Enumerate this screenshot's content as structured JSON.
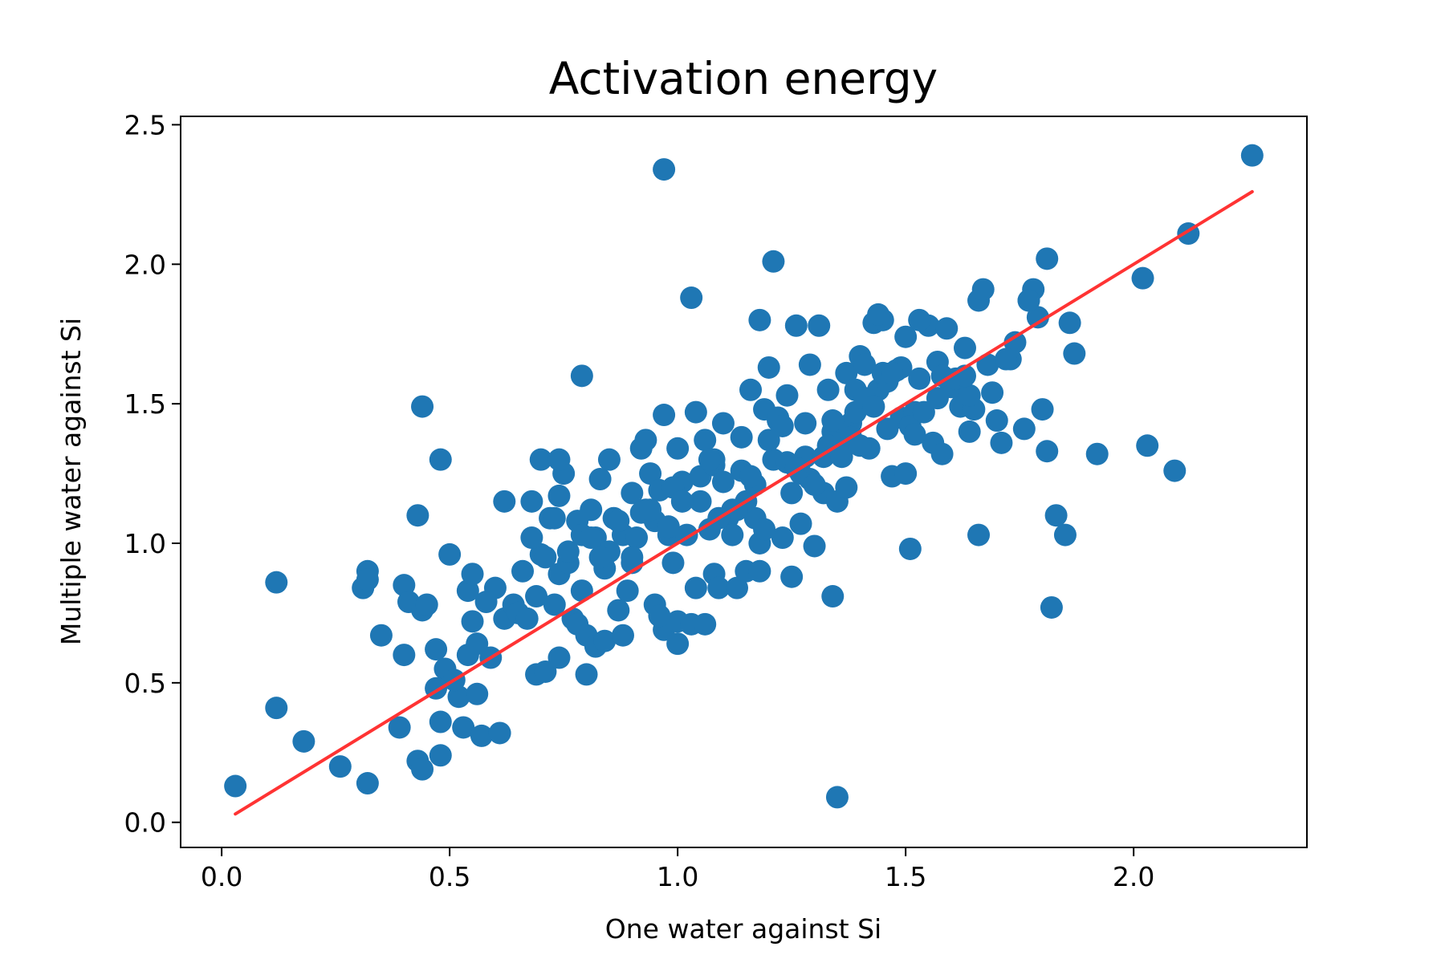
{
  "chart_data": {
    "type": "scatter",
    "title": "Activation energy",
    "xlabel": "One water against Si",
    "ylabel": "Multiple water against Si",
    "xlim": [
      -0.09,
      2.38
    ],
    "ylim": [
      -0.09,
      2.53
    ],
    "x_ticks": [
      "0.0",
      "0.5",
      "1.0",
      "1.5",
      "2.0"
    ],
    "y_ticks": [
      "0.0",
      "0.5",
      "1.0",
      "1.5",
      "2.0",
      "2.5"
    ],
    "grid": false,
    "legend": "none",
    "colors": {
      "points": "#1f77b4",
      "fit_line": "#ff3333",
      "axes": "#000000"
    },
    "fit_line": {
      "x": [
        0.03,
        2.26
      ],
      "y": [
        0.03,
        2.26
      ]
    },
    "series": [
      {
        "x": [
          0.03,
          0.12,
          0.12,
          0.18,
          0.26,
          0.31,
          0.32,
          0.32,
          0.32,
          0.35,
          0.39,
          0.4,
          0.4,
          0.41,
          0.43,
          0.44,
          0.43,
          0.44,
          0.45,
          0.47,
          0.48,
          0.48,
          0.49,
          0.5,
          0.52,
          0.53,
          0.54,
          0.54,
          0.55,
          0.56,
          0.56,
          0.57,
          0.59,
          0.6,
          0.61,
          0.62,
          0.64,
          0.65,
          0.66,
          0.67,
          0.68,
          0.69,
          0.69,
          0.7,
          0.7,
          0.71,
          0.72,
          0.73,
          0.74,
          0.74,
          0.74,
          0.75,
          0.76,
          0.77,
          0.78,
          0.78,
          0.79,
          0.79,
          0.8,
          0.8,
          0.81,
          0.82,
          0.82,
          0.83,
          0.84,
          0.84,
          0.85,
          0.86,
          0.87,
          0.88,
          0.88,
          0.89,
          0.9,
          0.9,
          0.91,
          0.92,
          0.93,
          0.94,
          0.95,
          0.96,
          0.97,
          0.97,
          0.98,
          0.99,
          1.0,
          1.0,
          1.01,
          1.02,
          1.03,
          1.04,
          1.04,
          1.05,
          1.06,
          1.07,
          1.08,
          1.08,
          1.09,
          1.1,
          1.11,
          1.12,
          1.13,
          1.14,
          1.15,
          1.16,
          1.17,
          1.18,
          1.18,
          1.19,
          1.2,
          1.21,
          1.22,
          1.23,
          1.24,
          1.25,
          1.26,
          1.27,
          1.28,
          1.29,
          1.3,
          1.31,
          1.32,
          1.33,
          1.34,
          1.34,
          1.35,
          1.36,
          1.37,
          1.38,
          1.39,
          1.4,
          1.41,
          1.42,
          1.43,
          1.44,
          1.45,
          1.46,
          1.47,
          1.48,
          1.49,
          1.5,
          1.51,
          1.52,
          1.53,
          1.55,
          1.56,
          1.57,
          1.58,
          1.59,
          1.6,
          1.62,
          1.63,
          1.64,
          1.65,
          1.66,
          1.67,
          1.68,
          1.7,
          1.71,
          1.73,
          1.74,
          1.76,
          1.77,
          1.78,
          1.79,
          1.8,
          1.81,
          1.81,
          1.82,
          1.85,
          1.86,
          1.87,
          1.92,
          2.02,
          2.03,
          2.09,
          2.12,
          2.26,
          0.97,
          1.21,
          1.03,
          0.48,
          0.74,
          0.44,
          1.83,
          1.66,
          1.77,
          1.44,
          1.53,
          1.18,
          1.35,
          0.96,
          1.08,
          1.27,
          1.15,
          0.9,
          0.85,
          1.39,
          0.79,
          0.68,
          0.62,
          0.73,
          1.0,
          1.12,
          1.24,
          1.32,
          1.46,
          1.58,
          1.64,
          1.72,
          1.49,
          1.41,
          1.22,
          1.06,
          0.93,
          0.81,
          0.71,
          0.58,
          0.51,
          0.47,
          0.55,
          1.17,
          1.29,
          1.37,
          1.51,
          1.61,
          1.69,
          1.28,
          1.14,
          0.99,
          0.87,
          0.76,
          1.05,
          1.19,
          1.33,
          1.43,
          1.54,
          1.63,
          1.5,
          1.36,
          1.25,
          1.1,
          0.95,
          0.83,
          0.92,
          1.01,
          1.09,
          1.16,
          1.23,
          1.3,
          1.38,
          1.45,
          1.52,
          1.57,
          1.47,
          1.34,
          1.2,
          1.07,
          0.94,
          0.98,
          1.13,
          1.26,
          1.4
        ],
        "y": [
          0.13,
          0.86,
          0.41,
          0.29,
          0.2,
          0.84,
          0.9,
          0.87,
          0.14,
          0.67,
          0.34,
          0.85,
          0.6,
          0.79,
          0.22,
          0.76,
          1.1,
          0.19,
          0.78,
          0.62,
          0.36,
          1.3,
          0.55,
          0.96,
          0.45,
          0.34,
          0.6,
          0.83,
          0.89,
          0.46,
          0.64,
          0.31,
          0.59,
          0.84,
          0.32,
          0.73,
          0.78,
          0.75,
          0.9,
          0.73,
          1.15,
          0.53,
          0.81,
          1.3,
          0.96,
          0.54,
          1.09,
          0.78,
          1.17,
          0.59,
          0.89,
          1.25,
          0.93,
          0.73,
          1.08,
          0.71,
          0.83,
          1.03,
          0.53,
          0.67,
          1.12,
          0.63,
          1.02,
          1.23,
          0.91,
          0.65,
          1.3,
          1.09,
          0.76,
          0.67,
          1.03,
          0.83,
          1.18,
          0.93,
          1.02,
          1.34,
          1.37,
          1.25,
          0.78,
          1.19,
          1.46,
          0.69,
          1.03,
          0.93,
          1.34,
          0.72,
          1.22,
          1.03,
          0.71,
          1.47,
          0.84,
          1.24,
          0.71,
          1.05,
          1.28,
          0.89,
          0.84,
          1.43,
          1.09,
          1.03,
          0.84,
          1.38,
          0.9,
          1.55,
          1.09,
          1.0,
          0.9,
          1.48,
          1.63,
          1.3,
          1.44,
          1.02,
          1.53,
          0.88,
          1.78,
          1.25,
          1.31,
          1.64,
          0.99,
          1.78,
          1.18,
          1.55,
          1.4,
          0.81,
          1.15,
          1.36,
          1.61,
          1.43,
          1.55,
          1.67,
          1.64,
          1.34,
          1.79,
          1.55,
          1.8,
          1.58,
          1.24,
          1.62,
          1.45,
          1.74,
          0.98,
          1.47,
          1.59,
          1.78,
          1.36,
          1.65,
          1.32,
          1.77,
          1.56,
          1.49,
          1.7,
          1.4,
          1.48,
          1.87,
          1.91,
          1.64,
          1.44,
          1.36,
          1.66,
          1.72,
          1.41,
          1.87,
          1.91,
          1.81,
          1.48,
          2.02,
          1.33,
          0.77,
          1.03,
          1.79,
          1.68,
          1.32,
          1.95,
          1.35,
          1.26,
          2.11,
          2.39,
          2.34,
          2.01,
          1.88,
          0.24,
          1.3,
          1.49,
          1.1,
          1.03,
          1.87,
          1.82,
          1.8,
          1.8,
          0.09,
          0.74,
          1.3,
          1.07,
          1.15,
          0.95,
          0.97,
          1.47,
          1.6,
          1.02,
          1.15,
          1.09,
          0.64,
          1.12,
          1.29,
          1.31,
          1.41,
          1.6,
          1.53,
          1.66,
          1.63,
          1.52,
          1.45,
          1.37,
          1.12,
          1.02,
          0.95,
          0.79,
          0.51,
          0.48,
          0.72,
          1.21,
          1.23,
          1.2,
          1.42,
          1.59,
          1.54,
          1.43,
          1.26,
          1.2,
          1.08,
          0.97,
          1.15,
          1.05,
          1.35,
          1.49,
          1.47,
          1.6,
          1.25,
          1.31,
          1.18,
          1.22,
          1.08,
          0.95,
          1.11,
          1.15,
          1.09,
          1.24,
          1.42,
          1.21,
          1.38,
          1.61,
          1.39,
          1.52,
          1.61,
          1.44,
          1.37,
          1.3,
          1.12,
          1.06,
          1.12,
          1.27,
          1.35
        ]
      }
    ]
  }
}
